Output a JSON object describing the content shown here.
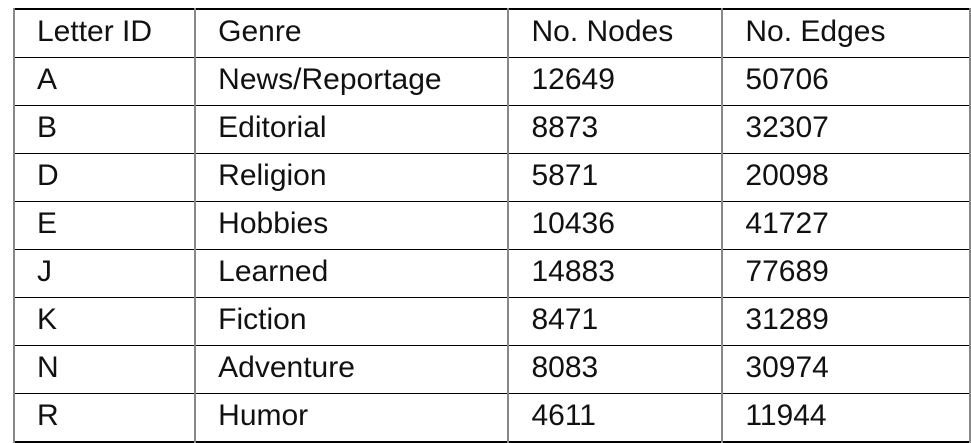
{
  "table": {
    "headers": [
      "Letter ID",
      "Genre",
      "No. Nodes",
      "No. Edges"
    ],
    "rows": [
      [
        "A",
        "News/Reportage",
        "12649",
        "50706"
      ],
      [
        "B",
        "Editorial",
        "8873",
        "32307"
      ],
      [
        "D",
        "Religion",
        "5871",
        "20098"
      ],
      [
        "E",
        "Hobbies",
        "10436",
        "41727"
      ],
      [
        "J",
        "Learned",
        "14883",
        "77689"
      ],
      [
        "K",
        "Fiction",
        "8471",
        "31289"
      ],
      [
        "N",
        "Adventure",
        "8083",
        "30974"
      ],
      [
        "R",
        "Humor",
        "4611",
        "11944"
      ]
    ]
  }
}
